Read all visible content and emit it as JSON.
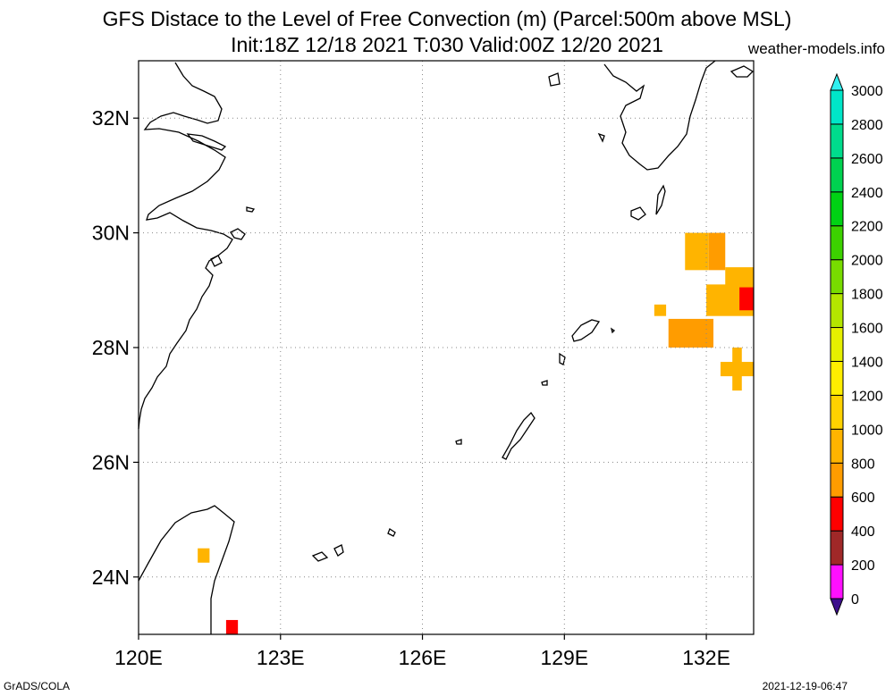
{
  "title": {
    "line1": "GFS Distace to the Level of Free Convection (m) (Parcel:500m above MSL)",
    "line2": "Init:18Z 12/18 2021 T:030 Valid:00Z 12/20 2021"
  },
  "source": "weather-models.info",
  "footer": {
    "left": "GrADS/COLA",
    "right": "2021-12-19-06:47"
  },
  "map": {
    "lon_range": [
      120,
      133
    ],
    "lat_range": [
      23,
      33
    ],
    "lon_ticks": [
      {
        "value": 120,
        "label": "120E"
      },
      {
        "value": 123,
        "label": "123E"
      },
      {
        "value": 126,
        "label": "126E"
      },
      {
        "value": 129,
        "label": "129E"
      },
      {
        "value": 132,
        "label": "132E"
      }
    ],
    "lat_ticks": [
      {
        "value": 24,
        "label": "24N"
      },
      {
        "value": 26,
        "label": "26N"
      },
      {
        "value": 28,
        "label": "28N"
      },
      {
        "value": 30,
        "label": "30N"
      },
      {
        "value": 32,
        "label": "32N"
      }
    ],
    "grid": true
  },
  "colorbar": {
    "levels": [
      {
        "label": "0",
        "color": "#3c0f8c"
      },
      {
        "label": "200",
        "color": "#ff10ff"
      },
      {
        "label": "400",
        "color": "#a02828"
      },
      {
        "label": "600",
        "color": "#ff0000"
      },
      {
        "label": "800",
        "color": "#ff9c00"
      },
      {
        "label": "1000",
        "color": "#ffb400"
      },
      {
        "label": "1200",
        "color": "#ffd200"
      },
      {
        "label": "1400",
        "color": "#ffee00"
      },
      {
        "label": "1600",
        "color": "#e6f000"
      },
      {
        "label": "1800",
        "color": "#b4e600"
      },
      {
        "label": "2000",
        "color": "#78dc00"
      },
      {
        "label": "2200",
        "color": "#3cd200"
      },
      {
        "label": "2400",
        "color": "#00d214"
      },
      {
        "label": "2600",
        "color": "#00d250"
      },
      {
        "label": "2800",
        "color": "#00dc8c"
      },
      {
        "label": "3000",
        "color": "#00e6c8"
      }
    ],
    "top_arrow_color": "#32f0f0",
    "bottom_arrow_color": "#3c0f8c"
  },
  "shaded_cells": [
    {
      "lon": 131.55,
      "lat": 29.35,
      "w": 0.5,
      "h": 0.65,
      "value": 1000
    },
    {
      "lon": 132.05,
      "lat": 29.35,
      "w": 0.35,
      "h": 0.65,
      "value": 900
    },
    {
      "lon": 132.4,
      "lat": 29.05,
      "w": 0.6,
      "h": 0.35,
      "value": 1000
    },
    {
      "lon": 132.0,
      "lat": 28.55,
      "w": 1.0,
      "h": 0.55,
      "value": 1000
    },
    {
      "lon": 131.2,
      "lat": 28.0,
      "w": 0.95,
      "h": 0.5,
      "value": 900
    },
    {
      "lon": 130.9,
      "lat": 28.55,
      "w": 0.25,
      "h": 0.2,
      "value": 1100
    },
    {
      "lon": 132.3,
      "lat": 27.5,
      "w": 0.7,
      "h": 0.25,
      "value": 1000
    },
    {
      "lon": 132.55,
      "lat": 27.25,
      "w": 0.2,
      "h": 0.75,
      "value": 1000
    },
    {
      "lon": 132.7,
      "lat": 28.65,
      "w": 0.3,
      "h": 0.4,
      "value": 600
    },
    {
      "lon": 121.25,
      "lat": 24.25,
      "w": 0.25,
      "h": 0.25,
      "value": 1000
    },
    {
      "lon": 121.85,
      "lat": 23.0,
      "w": 0.25,
      "h": 0.25,
      "value": 600
    }
  ]
}
